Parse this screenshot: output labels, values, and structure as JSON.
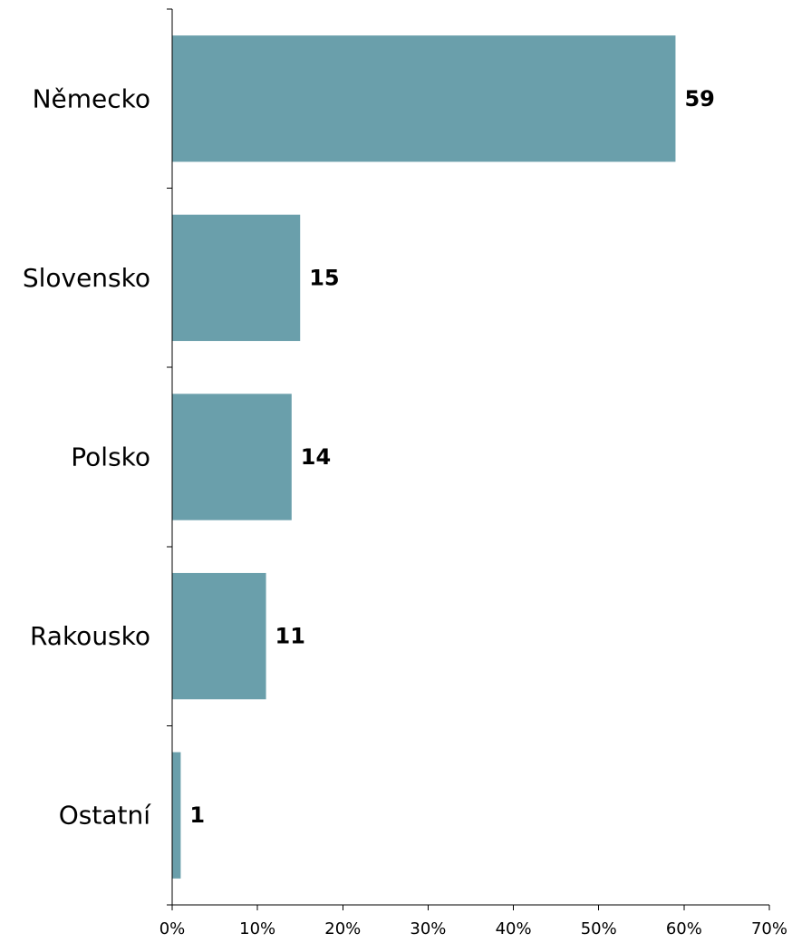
{
  "chart_data": {
    "type": "bar",
    "orientation": "horizontal",
    "title": "",
    "xlabel": "",
    "ylabel": "",
    "categories": [
      "Německo",
      "Slovensko",
      "Polsko",
      "Rakousko",
      "Ostatní"
    ],
    "values": [
      59,
      15,
      14,
      11,
      1
    ],
    "data_labels": [
      "59",
      "15",
      "14",
      "11",
      "1"
    ],
    "xlim": [
      0,
      70
    ],
    "x_ticks": [
      0,
      10,
      20,
      30,
      40,
      50,
      60,
      70
    ],
    "x_tick_labels": [
      "0%",
      "10%",
      "20%",
      "30%",
      "40%",
      "50%",
      "60%",
      "70%"
    ],
    "grid": false,
    "legend": "none",
    "bar_color": "#6a9fab"
  }
}
